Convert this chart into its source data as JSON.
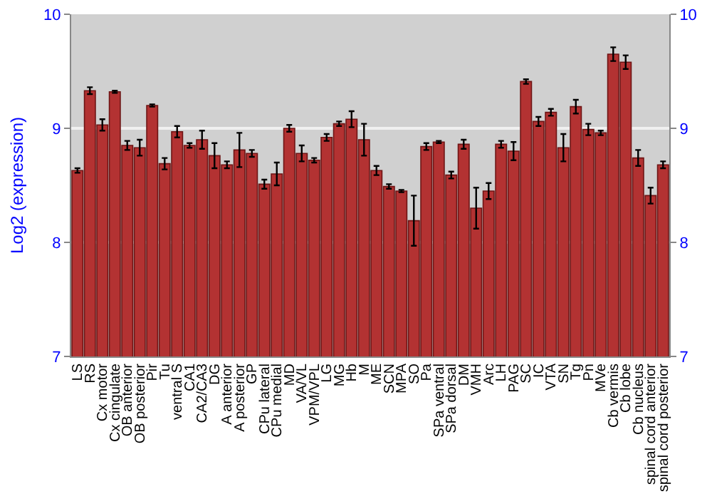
{
  "chart_data": {
    "type": "bar",
    "ylabel": "Log2 (expression)",
    "categories": [
      "LS",
      "RS",
      "Cx motor",
      "Cx cingulate",
      "OB anterior",
      "OB posterior",
      "Pir",
      "Tu",
      "ventral S",
      "CA1",
      "CA2/CA3",
      "DG",
      "A anterior",
      "A posterior",
      "GP",
      "CPu lateral",
      "CPu medial",
      "MD",
      "VA/VL",
      "VPM/VPL",
      "LG",
      "MG",
      "Hb",
      "M",
      "ME",
      "SCN",
      "MPA",
      "SO",
      "Pa",
      "SPa ventral",
      "SPa dorsal",
      "DM",
      "VMH",
      "Arc",
      "LH",
      "PAG",
      "SC",
      "IC",
      "VTA",
      "SN",
      "Tg",
      "Pn",
      "MVe",
      "Cb vermis",
      "Cb lobe",
      "Cb nucleus",
      "spinal cord anterior",
      "spinal cord posterior"
    ],
    "values": [
      8.63,
      9.33,
      9.03,
      9.32,
      8.85,
      8.83,
      9.2,
      8.69,
      8.97,
      8.85,
      8.9,
      8.76,
      8.68,
      8.81,
      8.78,
      8.51,
      8.6,
      9.0,
      8.78,
      8.72,
      8.92,
      9.04,
      9.08,
      8.9,
      8.63,
      8.49,
      8.45,
      8.19,
      8.84,
      8.88,
      8.59,
      8.86,
      8.3,
      8.45,
      8.86,
      8.8,
      9.41,
      9.06,
      9.14,
      8.83,
      9.19,
      8.99,
      8.96,
      9.65,
      9.58,
      8.74,
      8.41,
      8.68
    ],
    "errors": [
      0.02,
      0.03,
      0.05,
      0.01,
      0.04,
      0.07,
      0.01,
      0.05,
      0.05,
      0.02,
      0.08,
      0.11,
      0.03,
      0.15,
      0.03,
      0.04,
      0.1,
      0.03,
      0.07,
      0.02,
      0.03,
      0.02,
      0.07,
      0.14,
      0.04,
      0.02,
      0.01,
      0.22,
      0.03,
      0.01,
      0.03,
      0.04,
      0.18,
      0.07,
      0.03,
      0.08,
      0.02,
      0.04,
      0.03,
      0.12,
      0.06,
      0.05,
      0.02,
      0.06,
      0.06,
      0.07,
      0.07,
      0.03
    ],
    "color": "#b33232",
    "ylim": [
      7,
      10
    ],
    "yticks": [
      7,
      8,
      9,
      10
    ],
    "y2lim": [
      7,
      10
    ],
    "y2ticks": [
      7,
      8,
      9,
      10
    ],
    "grid": "y"
  }
}
